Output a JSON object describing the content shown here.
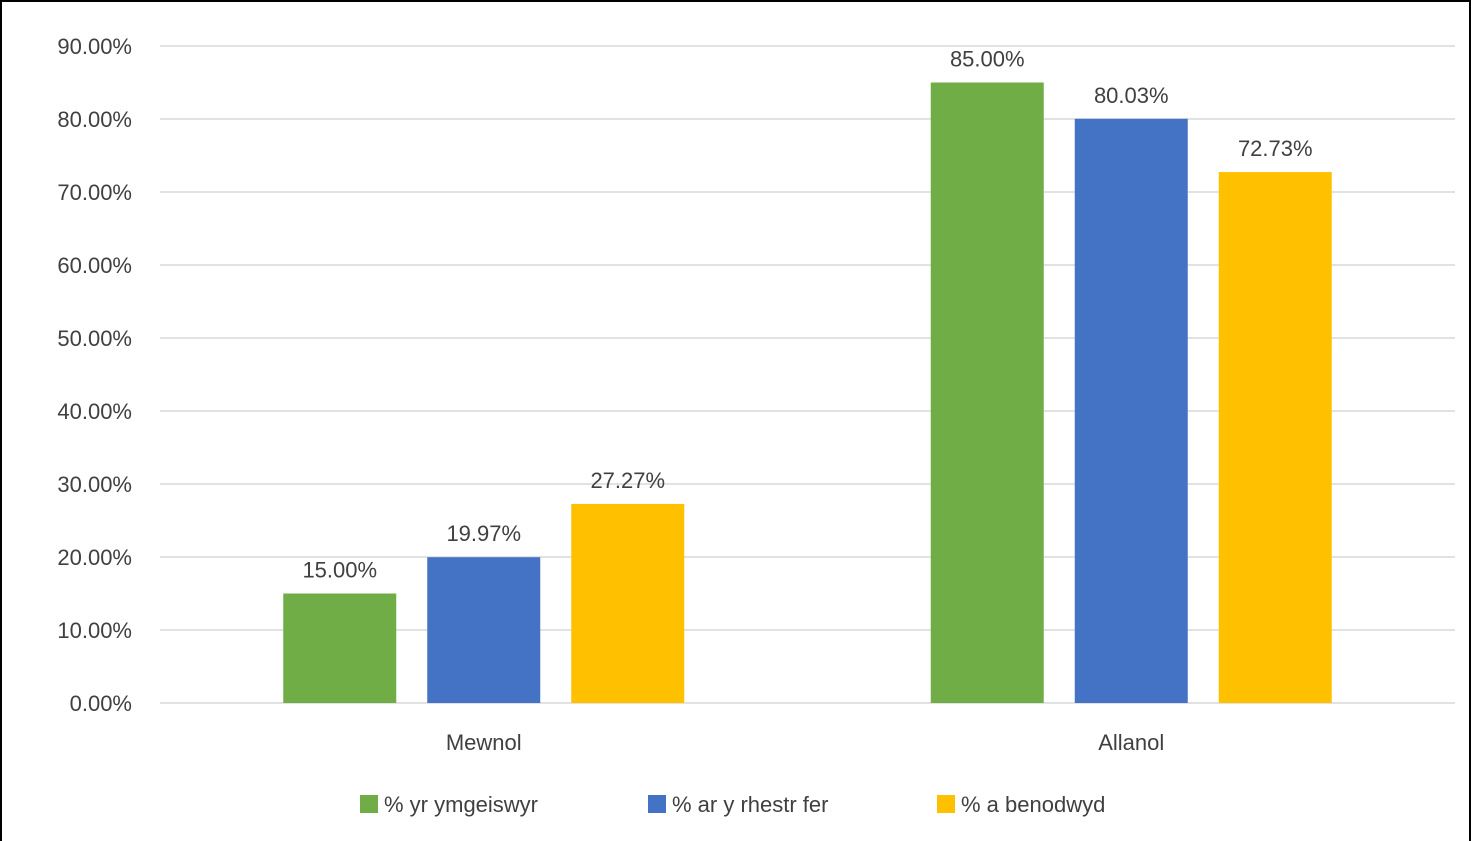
{
  "chart_data": {
    "type": "bar",
    "title": "",
    "xlabel": "",
    "ylabel": "",
    "categories": [
      "Mewnol",
      "Allanol"
    ],
    "series": [
      {
        "name": "% yr ymgeiswyr",
        "color": "#70AD47",
        "values": [
          15.0,
          85.0
        ],
        "labels": [
          "15.00%",
          "85.00%"
        ]
      },
      {
        "name": "% ar y rhestr fer",
        "color": "#4472C4",
        "values": [
          19.97,
          80.03
        ],
        "labels": [
          "19.97%",
          "80.03%"
        ]
      },
      {
        "name": "% a benodwyd",
        "color": "#FFC000",
        "values": [
          27.27,
          72.73
        ],
        "labels": [
          "27.27%",
          "72.73%"
        ]
      }
    ],
    "ylim": [
      0,
      90
    ],
    "yticks": [
      0,
      10,
      20,
      30,
      40,
      50,
      60,
      70,
      80,
      90
    ],
    "ytick_labels": [
      "0.00%",
      "10.00%",
      "20.00%",
      "30.00%",
      "40.00%",
      "50.00%",
      "60.00%",
      "70.00%",
      "80.00%",
      "90.00%"
    ],
    "grid": true,
    "legend_position": "bottom"
  }
}
